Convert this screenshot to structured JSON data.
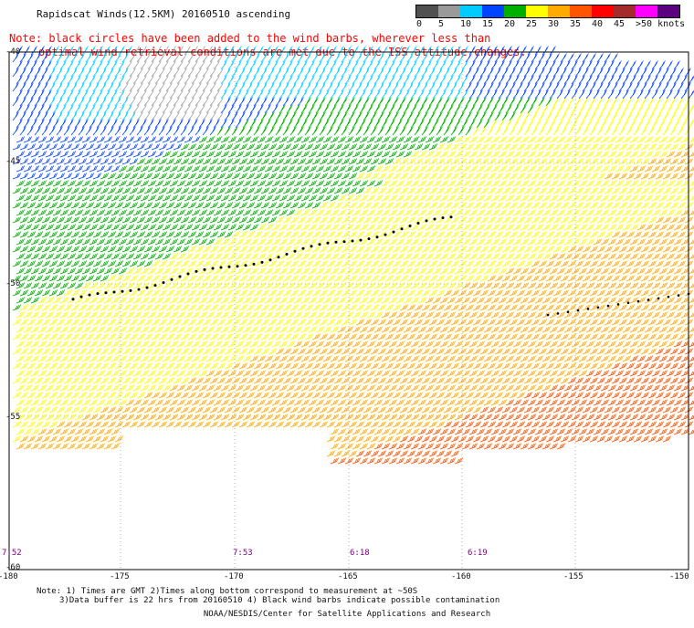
{
  "title": "Rapidscat Winds(12.5KM) 20160510 ascending",
  "note": [
    "Note: black circles have been added to the wind barbs, wherever less than",
    "optimal wind retrieval conditions are met due to the ISS attitude changes."
  ],
  "legend": {
    "labels": [
      "0",
      "5",
      "10",
      "15",
      "20",
      "25",
      "30",
      "35",
      "40",
      "45",
      ">50 knots"
    ],
    "colors": [
      "#505050",
      "#9a9a9a",
      "#00ccff",
      "#0044ff",
      "#00b000",
      "#ffff00",
      "#ffaa00",
      "#ff5500",
      "#ff0000",
      "#a52a2a",
      "#ff00ff",
      "#5a0080"
    ]
  },
  "axes": {
    "x_ticks": [
      "-180",
      "-175",
      "-170",
      "-165",
      "-160",
      "-155",
      "-150"
    ],
    "y_ticks": [
      "-40",
      "-45",
      "-50",
      "-55",
      "-60"
    ]
  },
  "times": [
    "7:52",
    "7:53",
    "6:18",
    "6:19"
  ],
  "footnote": [
    "Note: 1) Times are GMT 2)Times along bottom correspond to measurement at ~50S",
    "3)Data buffer is 22 hrs from 20160510 4) Black wind barbs indicate possible contamination"
  ],
  "credit": "NOAA/NESDIS/Center for Satellite Applications and Research"
}
